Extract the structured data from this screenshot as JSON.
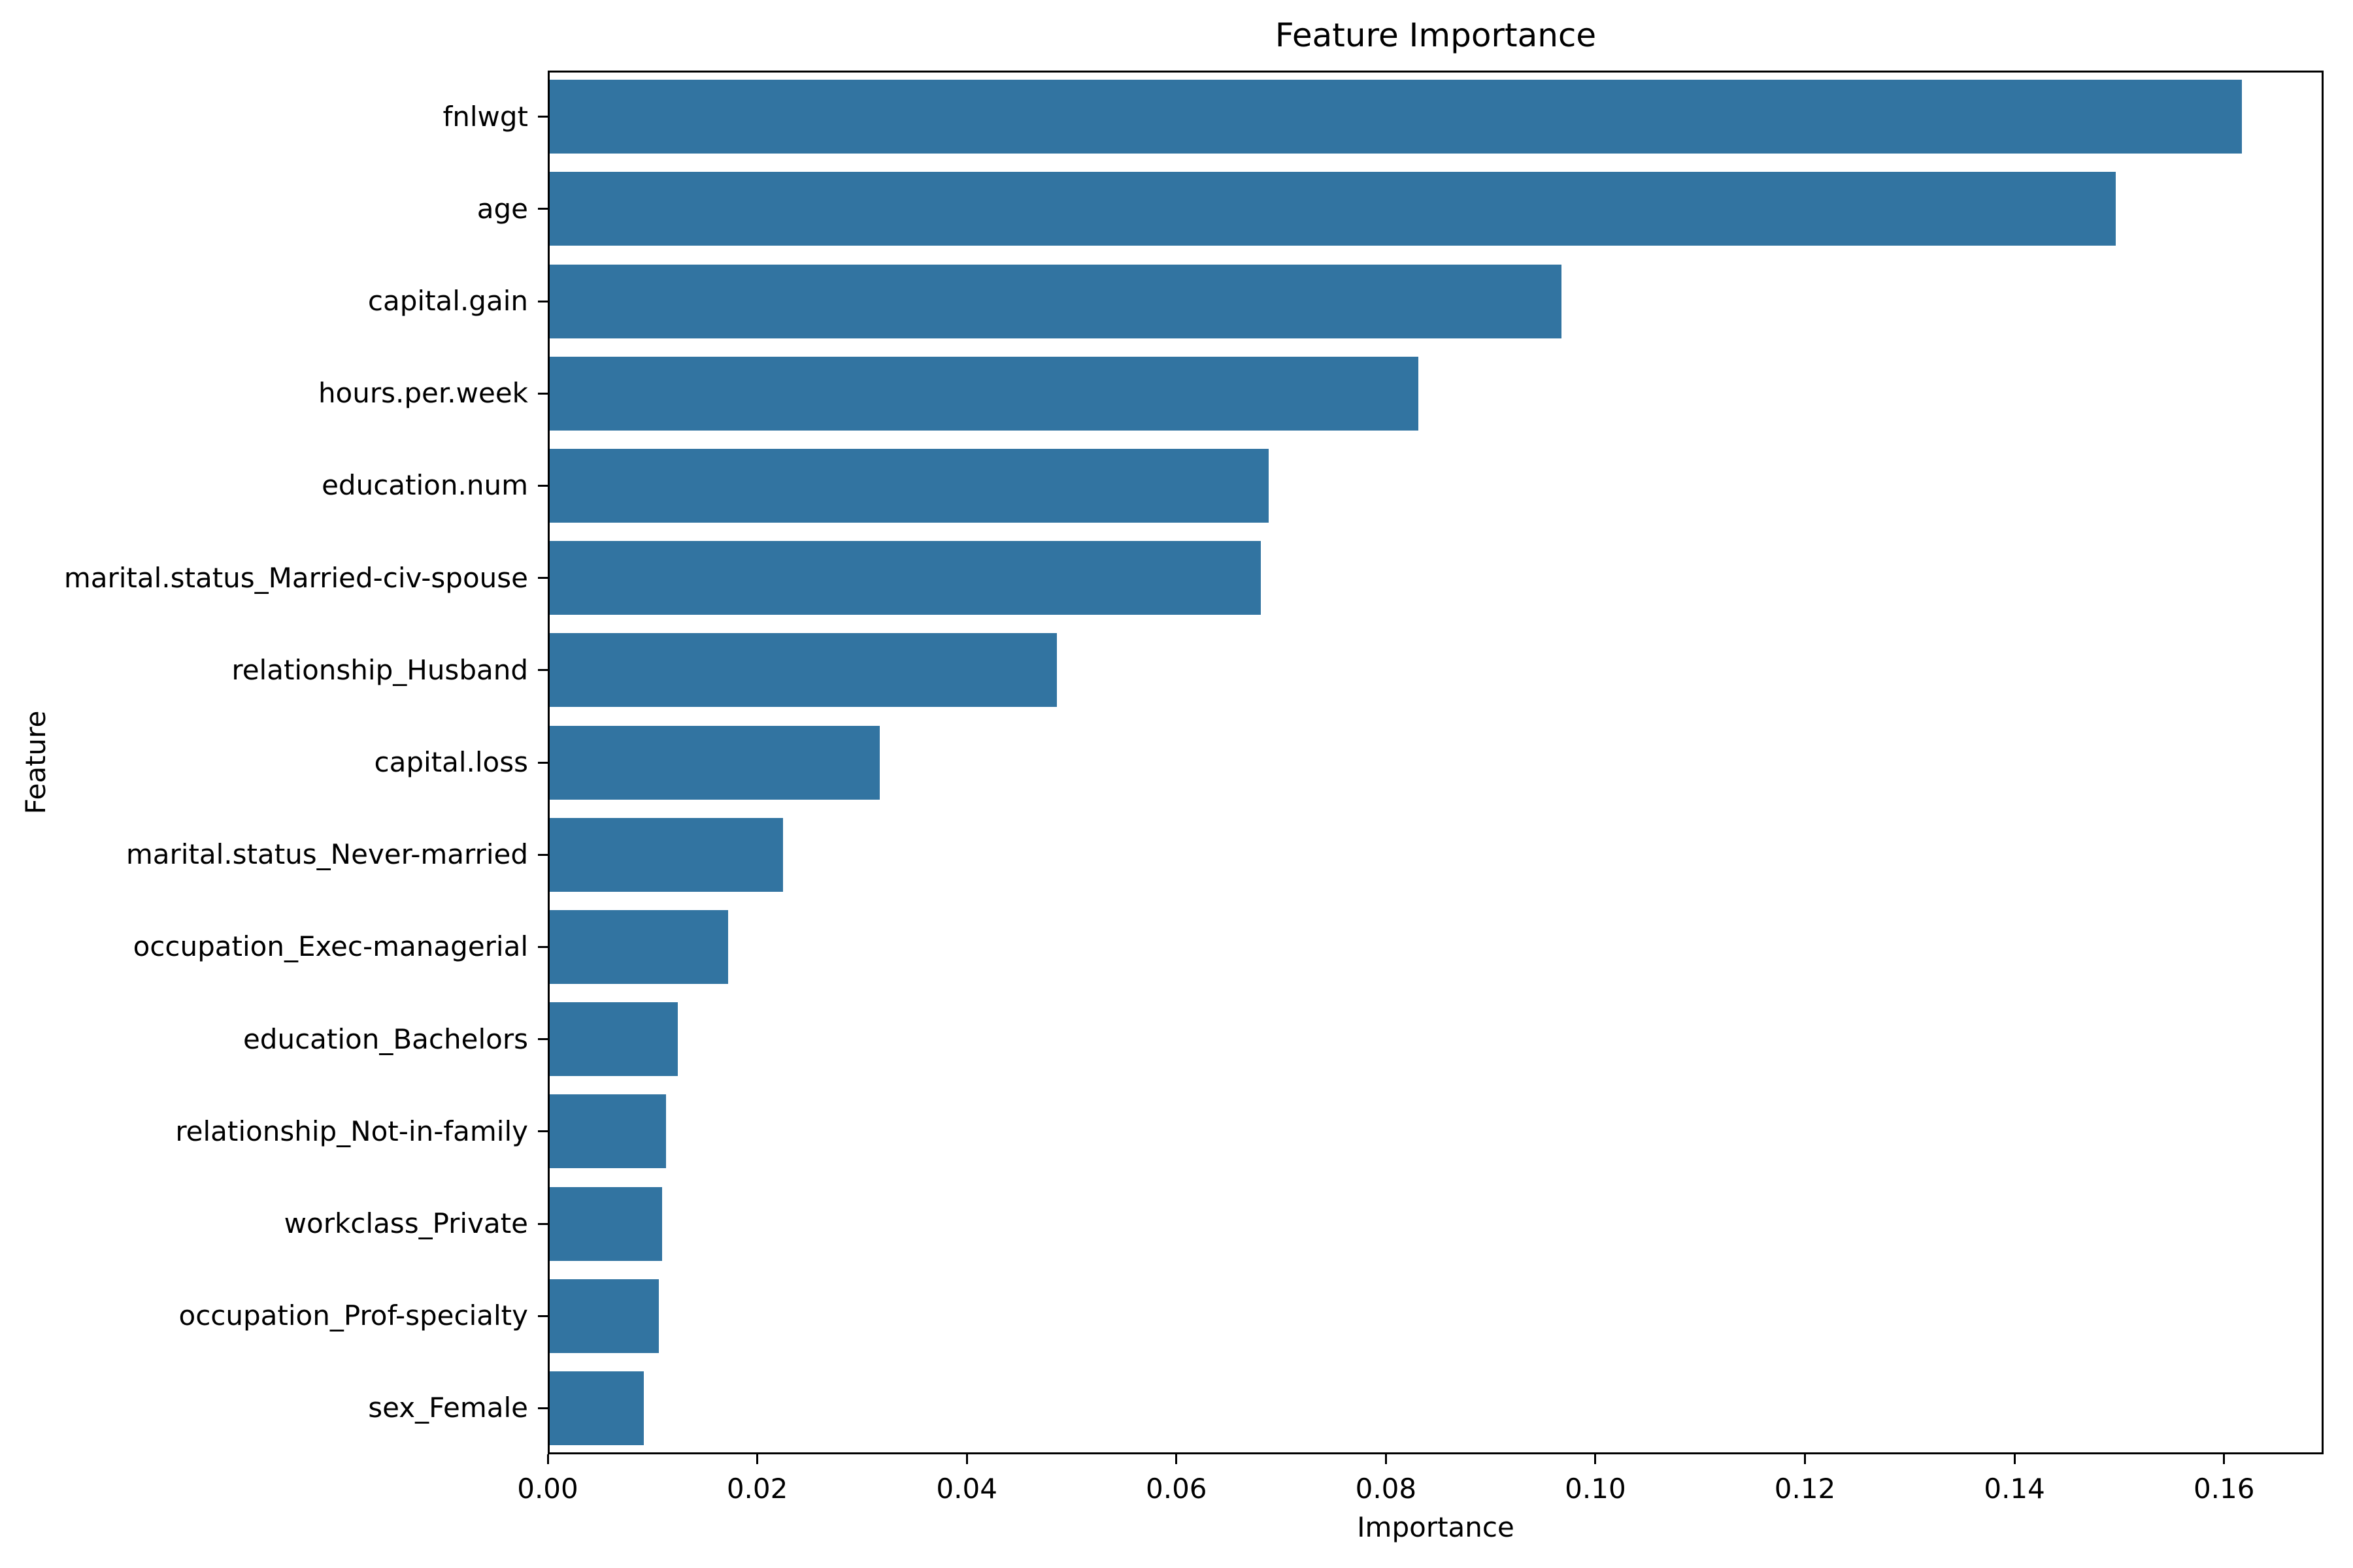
{
  "title": "Feature Importance",
  "chart_data": {
    "type": "bar",
    "orientation": "horizontal",
    "title": "Feature Importance",
    "xlabel": "Importance",
    "ylabel": "Feature",
    "categories": [
      "fnlwgt",
      "age",
      "capital.gain",
      "hours.per.week",
      "education.num",
      "marital.status_Married-civ-spouse",
      "relationship_Husband",
      "capital.loss",
      "marital.status_Never-married",
      "occupation_Exec-managerial",
      "education_Bachelors",
      "relationship_Not-in-family",
      "workclass_Private",
      "occupation_Prof-specialty",
      "sex_Female"
    ],
    "values": [
      0.1615,
      0.1495,
      0.0966,
      0.0829,
      0.0686,
      0.0679,
      0.0484,
      0.0315,
      0.0223,
      0.017,
      0.0122,
      0.0111,
      0.0107,
      0.0104,
      0.009
    ],
    "xlim": [
      0,
      0.1695
    ],
    "xticks": [
      0.0,
      0.02,
      0.04,
      0.06,
      0.08,
      0.1,
      0.12,
      0.14,
      0.16
    ],
    "xtick_labels": [
      "0.00",
      "0.02",
      "0.04",
      "0.06",
      "0.08",
      "0.10",
      "0.12",
      "0.14",
      "0.16"
    ],
    "grid": false,
    "legend": null,
    "bar_color": "#3274a1",
    "background_color": "#ffffff",
    "text_color": "#000000"
  }
}
